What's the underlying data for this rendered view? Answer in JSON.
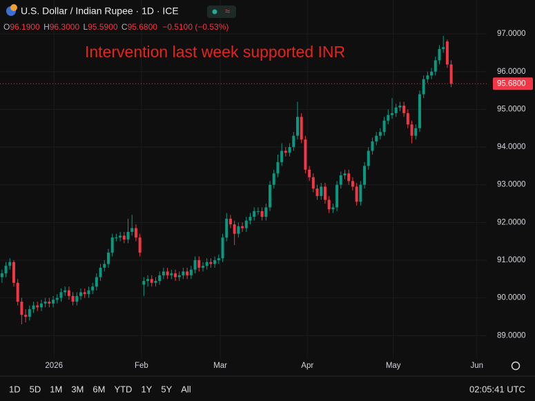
{
  "header": {
    "symbol": "U.S. Dollar / Indian Rupee · 1D · ICE",
    "o": "O",
    "open": "96.1900",
    "h": "H",
    "high": "96.3000",
    "l": "L",
    "low": "95.5900",
    "c": "C",
    "close": "95.6800",
    "change": "−0.5100 (−0.53%)"
  },
  "chart_data": {
    "type": "candlestick",
    "annotation": "Intervention last week supported INR",
    "up_color": "#089981",
    "down_color": "#f23645",
    "grid": true,
    "open": [
      90.55,
      90.65,
      90.85,
      90.95,
      90.4,
      89.9,
      89.55,
      89.5,
      89.7,
      89.8,
      89.75,
      89.85,
      89.9,
      89.85,
      89.95,
      90.0,
      90.15,
      90.2,
      90.05,
      89.9,
      90.05,
      90.15,
      90.1,
      90.2,
      90.3,
      90.55,
      90.8,
      90.9,
      91.2,
      91.6,
      91.6,
      91.65,
      91.55,
      91.75,
      91.85,
      91.6,
      90.35,
      90.45,
      90.5,
      90.4,
      90.45,
      90.6,
      90.7,
      90.6,
      90.65,
      90.55,
      90.6,
      90.7,
      90.6,
      90.75,
      91.0,
      90.8,
      90.85,
      90.95,
      90.9,
      91.0,
      91.05,
      91.6,
      92.1,
      91.95,
      91.7,
      91.9,
      91.85,
      92.05,
      92.15,
      92.3,
      92.3,
      92.15,
      92.4,
      93.0,
      93.3,
      93.6,
      93.9,
      93.85,
      94.0,
      94.3,
      94.8,
      94.2,
      93.4,
      93.2,
      92.9,
      92.7,
      92.95,
      92.6,
      92.35,
      92.4,
      93.0,
      93.25,
      93.3,
      93.1,
      92.95,
      92.55,
      93.0,
      93.5,
      93.9,
      94.15,
      94.3,
      94.4,
      94.7,
      94.85,
      94.9,
      95.05,
      95.1,
      94.9,
      94.6,
      94.3,
      94.5,
      95.4,
      95.8,
      95.9,
      96.0,
      96.3,
      96.6,
      96.8,
      96.19
    ],
    "high": [
      90.75,
      90.95,
      91.05,
      91.0,
      90.5,
      90.0,
      89.7,
      89.8,
      89.9,
      89.9,
      89.95,
      90.0,
      90.0,
      90.05,
      90.1,
      90.25,
      90.3,
      90.3,
      90.15,
      90.15,
      90.25,
      90.25,
      90.3,
      90.4,
      90.65,
      90.9,
      91.0,
      91.3,
      91.7,
      91.7,
      91.75,
      91.75,
      92.1,
      92.2,
      91.95,
      91.7,
      90.55,
      90.6,
      90.6,
      90.55,
      90.7,
      90.8,
      90.8,
      90.75,
      90.75,
      90.7,
      90.8,
      90.8,
      90.85,
      91.1,
      91.1,
      90.95,
      91.05,
      91.05,
      91.1,
      91.15,
      91.7,
      92.25,
      92.2,
      92.05,
      92.0,
      92.0,
      92.15,
      92.25,
      92.4,
      92.4,
      92.4,
      92.5,
      93.1,
      93.4,
      93.8,
      94.1,
      94.0,
      94.1,
      94.4,
      95.2,
      94.9,
      94.3,
      93.5,
      93.3,
      93.0,
      93.05,
      93.05,
      92.7,
      92.5,
      93.1,
      93.35,
      93.4,
      93.4,
      93.2,
      93.05,
      93.1,
      93.6,
      94.0,
      94.25,
      94.4,
      94.5,
      94.8,
      95.0,
      95.3,
      95.15,
      95.2,
      95.2,
      95.0,
      94.7,
      94.6,
      95.5,
      95.9,
      96.0,
      96.1,
      96.4,
      96.7,
      96.95,
      96.85,
      96.3
    ],
    "low": [
      90.4,
      90.55,
      90.75,
      90.3,
      89.8,
      89.3,
      89.35,
      89.4,
      89.6,
      89.65,
      89.65,
      89.75,
      89.75,
      89.75,
      89.85,
      89.9,
      90.05,
      89.95,
      89.8,
      89.8,
      89.95,
      90.0,
      90.0,
      90.1,
      90.2,
      90.45,
      90.7,
      90.8,
      91.1,
      91.5,
      91.5,
      91.45,
      91.45,
      91.65,
      91.5,
      91.1,
      90.05,
      90.3,
      90.3,
      90.3,
      90.35,
      90.5,
      90.5,
      90.5,
      90.45,
      90.45,
      90.5,
      90.5,
      90.5,
      90.65,
      90.7,
      90.7,
      90.75,
      90.8,
      90.8,
      90.9,
      90.95,
      91.5,
      91.85,
      91.4,
      91.6,
      91.75,
      91.75,
      91.95,
      92.05,
      92.2,
      92.05,
      92.05,
      92.3,
      92.9,
      93.2,
      93.5,
      93.75,
      93.75,
      93.9,
      94.2,
      94.1,
      93.3,
      93.1,
      92.8,
      92.6,
      92.6,
      92.5,
      92.25,
      92.25,
      92.3,
      92.9,
      93.15,
      93.0,
      92.85,
      92.45,
      92.45,
      92.9,
      93.4,
      93.8,
      94.05,
      94.2,
      94.3,
      94.6,
      94.75,
      94.8,
      94.95,
      94.8,
      94.5,
      94.1,
      94.2,
      94.4,
      95.3,
      95.7,
      95.8,
      95.9,
      96.2,
      96.5,
      96.1,
      95.59
    ],
    "close": [
      90.65,
      90.85,
      90.95,
      90.4,
      89.9,
      89.55,
      89.5,
      89.7,
      89.8,
      89.75,
      89.85,
      89.9,
      89.85,
      89.95,
      90.0,
      90.15,
      90.2,
      90.05,
      89.9,
      90.05,
      90.15,
      90.1,
      90.2,
      90.3,
      90.55,
      90.8,
      90.9,
      91.2,
      91.6,
      91.6,
      91.65,
      91.55,
      91.75,
      91.85,
      91.6,
      91.2,
      90.45,
      90.5,
      90.4,
      90.45,
      90.6,
      90.7,
      90.6,
      90.65,
      90.55,
      90.6,
      90.7,
      90.6,
      90.75,
      91.0,
      90.8,
      90.85,
      90.95,
      90.9,
      91.0,
      91.05,
      91.6,
      92.1,
      91.95,
      91.7,
      91.9,
      91.85,
      92.05,
      92.15,
      92.3,
      92.3,
      92.15,
      92.4,
      93.0,
      93.3,
      93.6,
      93.9,
      93.85,
      94.0,
      94.3,
      94.8,
      94.2,
      93.4,
      93.2,
      92.9,
      92.7,
      92.95,
      92.6,
      92.35,
      92.4,
      93.0,
      93.25,
      93.3,
      93.1,
      92.95,
      92.55,
      93.0,
      93.5,
      93.9,
      94.15,
      94.3,
      94.4,
      94.7,
      94.85,
      94.9,
      95.05,
      95.1,
      94.9,
      94.6,
      94.3,
      94.5,
      95.4,
      95.8,
      95.9,
      96.0,
      96.3,
      96.6,
      96.65,
      96.19,
      95.68
    ],
    "last_price": {
      "value": 95.68,
      "label": "95.6800"
    },
    "xlim": [
      -0.5,
      123
    ],
    "xticks": [
      {
        "value": 13.2,
        "label": "2026"
      },
      {
        "value": 35.4,
        "label": "Feb"
      },
      {
        "value": 55.4,
        "label": "Mar"
      },
      {
        "value": 77.5,
        "label": "Apr"
      },
      {
        "value": 99.3,
        "label": "May"
      },
      {
        "value": 120.5,
        "label": "Jun"
      }
    ],
    "ylim": [
      88.4,
      97.9
    ],
    "yticks": [
      {
        "value": 89,
        "label": "89.0000"
      },
      {
        "value": 90,
        "label": "90.0000"
      },
      {
        "value": 91,
        "label": "91.0000"
      },
      {
        "value": 92,
        "label": "92.0000"
      },
      {
        "value": 93,
        "label": "93.0000"
      },
      {
        "value": 94,
        "label": "94.0000"
      },
      {
        "value": 95,
        "label": "95.0000"
      },
      {
        "value": 96,
        "label": "96.0000"
      },
      {
        "value": 97,
        "label": "97.0000"
      }
    ]
  },
  "toolbar": {
    "ranges": [
      "1D",
      "5D",
      "1M",
      "3M",
      "6M",
      "YTD",
      "1Y",
      "5Y",
      "All"
    ],
    "clock": "02:05:41 UTC"
  }
}
